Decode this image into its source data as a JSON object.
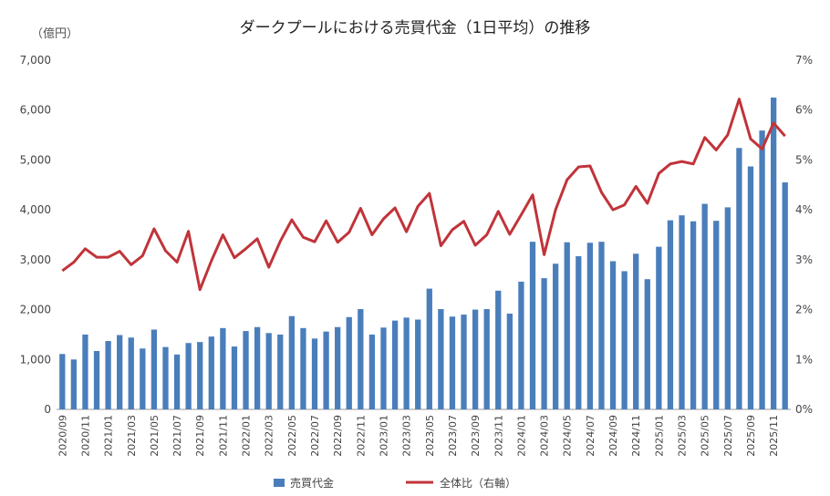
{
  "chart_data": {
    "type": "bar+line",
    "title": "ダークプールにおける売買代金（1日平均）の推移",
    "y_unit_label": "（億円）",
    "categories": [
      "2020/09",
      "2020/10",
      "2020/11",
      "2020/12",
      "2021/01",
      "2021/02",
      "2021/03",
      "2021/04",
      "2021/05",
      "2021/06",
      "2021/07",
      "2021/08",
      "2021/09",
      "2021/10",
      "2021/11",
      "2021/12",
      "2022/01",
      "2022/02",
      "2022/03",
      "2022/04",
      "2022/05",
      "2022/06",
      "2022/07",
      "2022/08",
      "2022/09",
      "2022/10",
      "2022/11",
      "2022/12",
      "2023/01",
      "2023/02",
      "2023/03",
      "2023/04",
      "2023/05",
      "2023/06",
      "2023/07",
      "2023/08",
      "2023/09",
      "2023/10",
      "2023/11",
      "2023/12",
      "2024/01",
      "2024/02",
      "2024/03",
      "2024/04",
      "2024/05",
      "2024/06",
      "2024/07",
      "2024/08",
      "2024/09",
      "2024/10",
      "2024/11",
      "2024/12",
      "2025/01",
      "2025/02",
      "2025/03",
      "2025/04",
      "2025/05",
      "2025/06",
      "2025/07",
      "2025/08",
      "2025/09",
      "2025/10",
      "2025/11",
      "2025/12"
    ],
    "x_tick_labels": [
      "2020/09",
      "2020/11",
      "2021/01",
      "2021/03",
      "2021/05",
      "2021/07",
      "2021/09",
      "2021/11",
      "2022/01",
      "2022/03",
      "2022/05",
      "2022/07",
      "2022/09",
      "2022/11",
      "2023/01",
      "2023/03",
      "2023/05",
      "2023/07",
      "2023/09",
      "2023/11",
      "2024/01",
      "2024/03",
      "2024/05",
      "2024/07",
      "2024/09",
      "2024/11",
      "2025/01",
      "2025/03",
      "2025/05",
      "2025/07",
      "2025/09",
      "2025/11"
    ],
    "y_left": {
      "min": 0,
      "max": 7000,
      "ticks": [
        "0",
        "1,000",
        "2,000",
        "3,000",
        "4,000",
        "5,000",
        "6,000",
        "7,000"
      ]
    },
    "y_right": {
      "min": 0,
      "max": 7,
      "ticks": [
        "0%",
        "1%",
        "2%",
        "3%",
        "4%",
        "5%",
        "6%",
        "7%"
      ]
    },
    "series": [
      {
        "name": "売買代金",
        "type": "bar",
        "axis": "left",
        "color": "#4a7ebb",
        "values": [
          1110,
          1000,
          1500,
          1170,
          1370,
          1490,
          1440,
          1220,
          1600,
          1250,
          1100,
          1330,
          1350,
          1460,
          1630,
          1260,
          1570,
          1650,
          1530,
          1500,
          1870,
          1630,
          1420,
          1560,
          1650,
          1850,
          2010,
          1500,
          1640,
          1780,
          1840,
          1800,
          2420,
          2010,
          1860,
          1900,
          2000,
          2010,
          2380,
          1920,
          2560,
          3360,
          2630,
          2920,
          3350,
          3070,
          3340,
          3360,
          2970,
          2770,
          3120,
          2610,
          3260,
          3790,
          3890,
          3770,
          4120,
          3780,
          4050,
          5240,
          4870,
          5590,
          6250,
          4550
        ]
      },
      {
        "name": "全体比（右軸）",
        "type": "line",
        "axis": "right",
        "color": "#c0343a",
        "values": [
          2.78,
          2.95,
          3.22,
          3.05,
          3.05,
          3.17,
          2.9,
          3.08,
          3.62,
          3.18,
          2.95,
          3.57,
          2.4,
          2.98,
          3.5,
          3.04,
          3.22,
          3.42,
          2.85,
          3.37,
          3.8,
          3.45,
          3.36,
          3.78,
          3.35,
          3.55,
          4.03,
          3.5,
          3.82,
          4.04,
          3.56,
          4.07,
          4.33,
          3.28,
          3.6,
          3.77,
          3.29,
          3.5,
          3.97,
          3.51,
          3.9,
          4.3,
          3.1,
          4.0,
          4.6,
          4.86,
          4.88,
          4.35,
          4.0,
          4.1,
          4.47,
          4.13,
          4.73,
          4.92,
          4.97,
          4.92,
          5.45,
          5.2,
          5.5,
          6.22,
          5.42,
          5.22,
          5.74,
          5.48
        ]
      }
    ],
    "legend_placement": "bottom-center",
    "grid": false
  }
}
